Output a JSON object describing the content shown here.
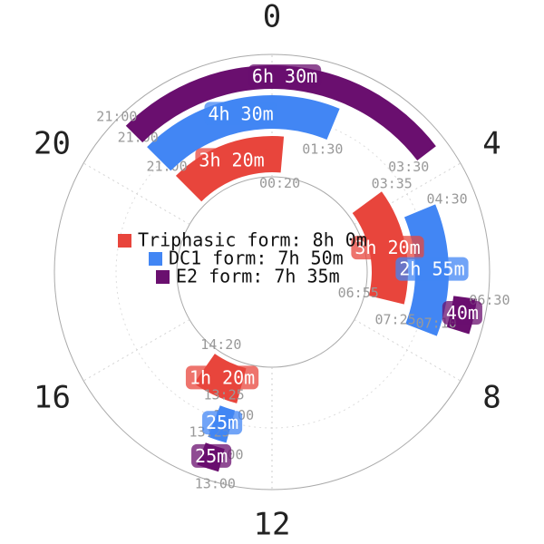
{
  "chart_data": {
    "type": "polar-clock",
    "xlim": [
      0,
      24
    ],
    "xticks": [
      0,
      4,
      8,
      12,
      16,
      20
    ],
    "series": [
      {
        "name": "Triphasic form: 8h 0m",
        "color": "#e8453c",
        "segments": [
          {
            "start": "21:00",
            "end": "00:20",
            "label": "3h 20m"
          },
          {
            "start": "03:35",
            "end": "06:55",
            "label": "3h 20m"
          },
          {
            "start": "13:00",
            "end": "14:20",
            "label": "1h 20m"
          }
        ]
      },
      {
        "name": "DC1 form: 7h 50m",
        "color": "#4286f4",
        "segments": [
          {
            "start": "21:00",
            "end": "01:30",
            "label": "4h 30m"
          },
          {
            "start": "04:30",
            "end": "07:25",
            "label": "2h 55m"
          },
          {
            "start": "13:00",
            "end": "13:25",
            "label": "25m"
          }
        ]
      },
      {
        "name": "E2 form: 7h 35m",
        "color": "#6a0f6f",
        "segments": [
          {
            "start": "21:00",
            "end": "03:30",
            "label": "6h 30m"
          },
          {
            "start": "06:30",
            "end": "07:10",
            "label": "40m"
          },
          {
            "start": "13:00",
            "end": "13:25",
            "label": "25m"
          }
        ]
      }
    ]
  }
}
